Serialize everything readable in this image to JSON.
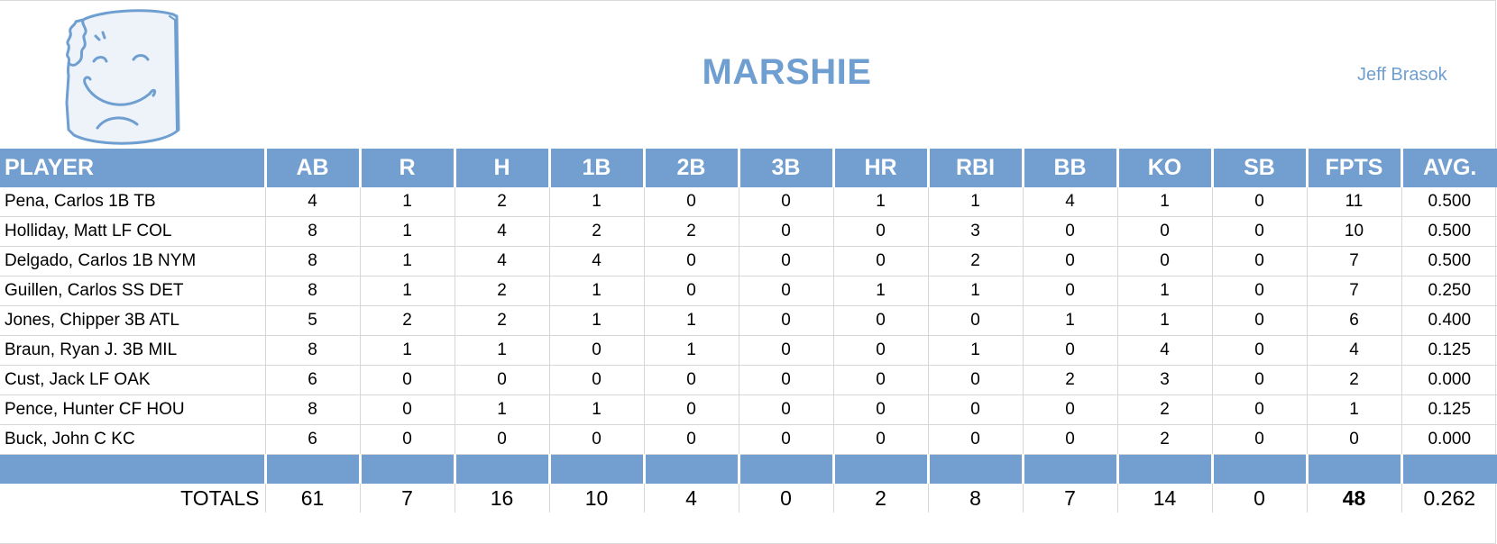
{
  "header": {
    "title": "MARSHIE",
    "owner": "Jeff Brasok",
    "logo_icon": "marshmallow-face-icon"
  },
  "colors": {
    "header_blue": "#729fcf",
    "title_blue": "#6f9fd0"
  },
  "table": {
    "columns": [
      "PLAYER",
      "AB",
      "R",
      "H",
      "1B",
      "2B",
      "3B",
      "HR",
      "RBI",
      "BB",
      "KO",
      "SB",
      "FPTS",
      "AVG."
    ],
    "rows": [
      [
        "Pena, Carlos 1B TB",
        "4",
        "1",
        "2",
        "1",
        "0",
        "0",
        "1",
        "1",
        "4",
        "1",
        "0",
        "11",
        "0.500"
      ],
      [
        "Holliday, Matt LF COL",
        "8",
        "1",
        "4",
        "2",
        "2",
        "0",
        "0",
        "3",
        "0",
        "0",
        "0",
        "10",
        "0.500"
      ],
      [
        "Delgado, Carlos 1B NYM",
        "8",
        "1",
        "4",
        "4",
        "0",
        "0",
        "0",
        "2",
        "0",
        "0",
        "0",
        "7",
        "0.500"
      ],
      [
        "Guillen, Carlos SS DET",
        "8",
        "1",
        "2",
        "1",
        "0",
        "0",
        "1",
        "1",
        "0",
        "1",
        "0",
        "7",
        "0.250"
      ],
      [
        "Jones, Chipper 3B ATL",
        "5",
        "2",
        "2",
        "1",
        "1",
        "0",
        "0",
        "0",
        "1",
        "1",
        "0",
        "6",
        "0.400"
      ],
      [
        "Braun, Ryan J. 3B MIL",
        "8",
        "1",
        "1",
        "0",
        "1",
        "0",
        "0",
        "1",
        "0",
        "4",
        "0",
        "4",
        "0.125"
      ],
      [
        "Cust, Jack LF OAK",
        "6",
        "0",
        "0",
        "0",
        "0",
        "0",
        "0",
        "0",
        "2",
        "3",
        "0",
        "2",
        "0.000"
      ],
      [
        "Pence, Hunter CF HOU",
        "8",
        "0",
        "1",
        "1",
        "0",
        "0",
        "0",
        "0",
        "0",
        "2",
        "0",
        "1",
        "0.125"
      ],
      [
        "Buck, John C KC",
        "6",
        "0",
        "0",
        "0",
        "0",
        "0",
        "0",
        "0",
        "0",
        "2",
        "0",
        "0",
        "0.000"
      ]
    ],
    "totals": [
      "TOTALS",
      "61",
      "7",
      "16",
      "10",
      "4",
      "0",
      "2",
      "8",
      "7",
      "14",
      "0",
      "48",
      "0.262"
    ]
  }
}
